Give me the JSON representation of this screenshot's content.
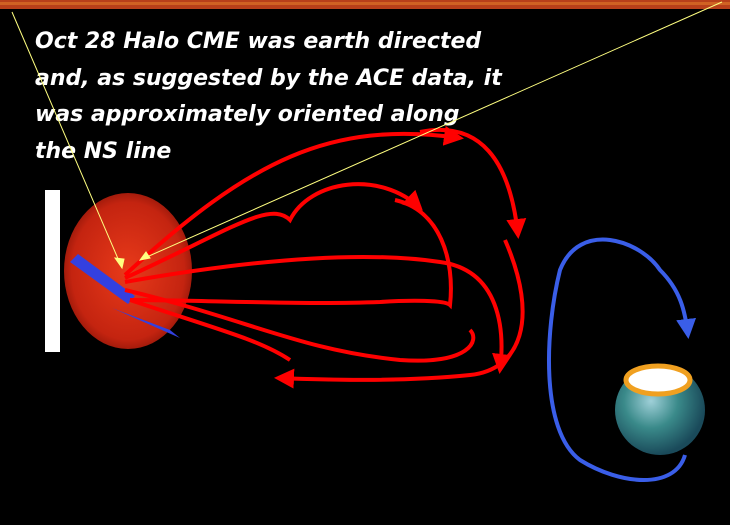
{
  "slide": {
    "caption_lines": [
      "Oct 28 Halo CME was earth directed",
      "and, as suggested by the ACE data, it",
      "was approximately oriented along",
      "the NS line"
    ]
  }
}
